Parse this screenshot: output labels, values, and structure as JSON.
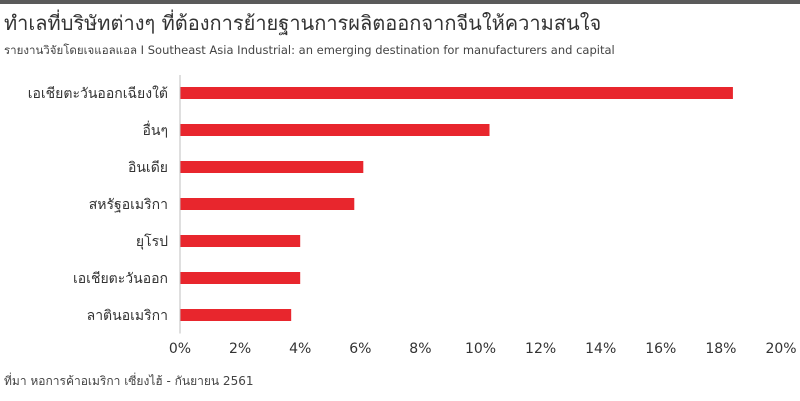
{
  "header": {
    "title": "ทำเลที่บริษัทต่างๆ ที่ต้องการย้ายฐานการผลิตออกจากจีนให้ความสนใจ",
    "subtitle": "รายงานวิจัยโดยเจแอลแอล I Southeast Asia Industrial: an emerging destination for manufacturers and capital"
  },
  "source": "ที่มา หอการค้าอเมริกา เซี่ยงไฮ้ - กันยายน 2561",
  "colors": {
    "bar": "#e8262d",
    "axis": "#bfbfbf",
    "text": "#333333",
    "top_rule": "#5a5a5a"
  },
  "chart_data": {
    "type": "bar",
    "orientation": "horizontal",
    "categories": [
      "เอเชียตะวันออกเฉียงใต้",
      "อื่นๆ",
      "อินเดีย",
      "สหรัฐอเมริกา",
      "ยุโรป",
      "เอเชียตะวันออก",
      "ลาตินอเมริกา"
    ],
    "values": [
      18.4,
      10.3,
      6.1,
      5.8,
      4.0,
      4.0,
      3.7
    ],
    "unit": "%",
    "xlim": [
      0,
      20
    ],
    "ticks": [
      0,
      2,
      4,
      6,
      8,
      10,
      12,
      14,
      16,
      18,
      20
    ],
    "tick_labels": [
      "0%",
      "2%",
      "4%",
      "6%",
      "8%",
      "10%",
      "12%",
      "14%",
      "16%",
      "18%",
      "20%"
    ],
    "grid": false,
    "legend": "none"
  }
}
